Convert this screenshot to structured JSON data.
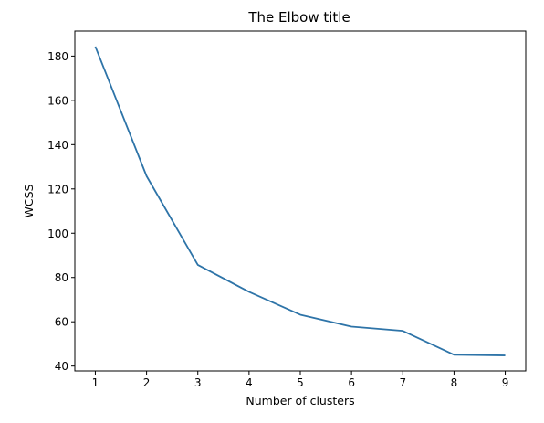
{
  "chart_data": {
    "type": "line",
    "title": "The Elbow title",
    "xlabel": "Number of clusters",
    "ylabel": "WCSS",
    "x": [
      1,
      2,
      3,
      4,
      5,
      6,
      7,
      8,
      9
    ],
    "series": [
      {
        "values": [
          184.3,
          125.8,
          85.7,
          73.5,
          63.2,
          57.8,
          55.9,
          45.1,
          44.8
        ]
      }
    ],
    "xticks": [
      1,
      2,
      3,
      4,
      5,
      6,
      7,
      8,
      9
    ],
    "yticks": [
      40,
      60,
      80,
      100,
      120,
      140,
      160,
      180
    ],
    "xlim": [
      0.6,
      9.4
    ],
    "ylim": [
      37.8,
      191.3
    ],
    "grid": false,
    "line_color": "#2e74a8"
  }
}
